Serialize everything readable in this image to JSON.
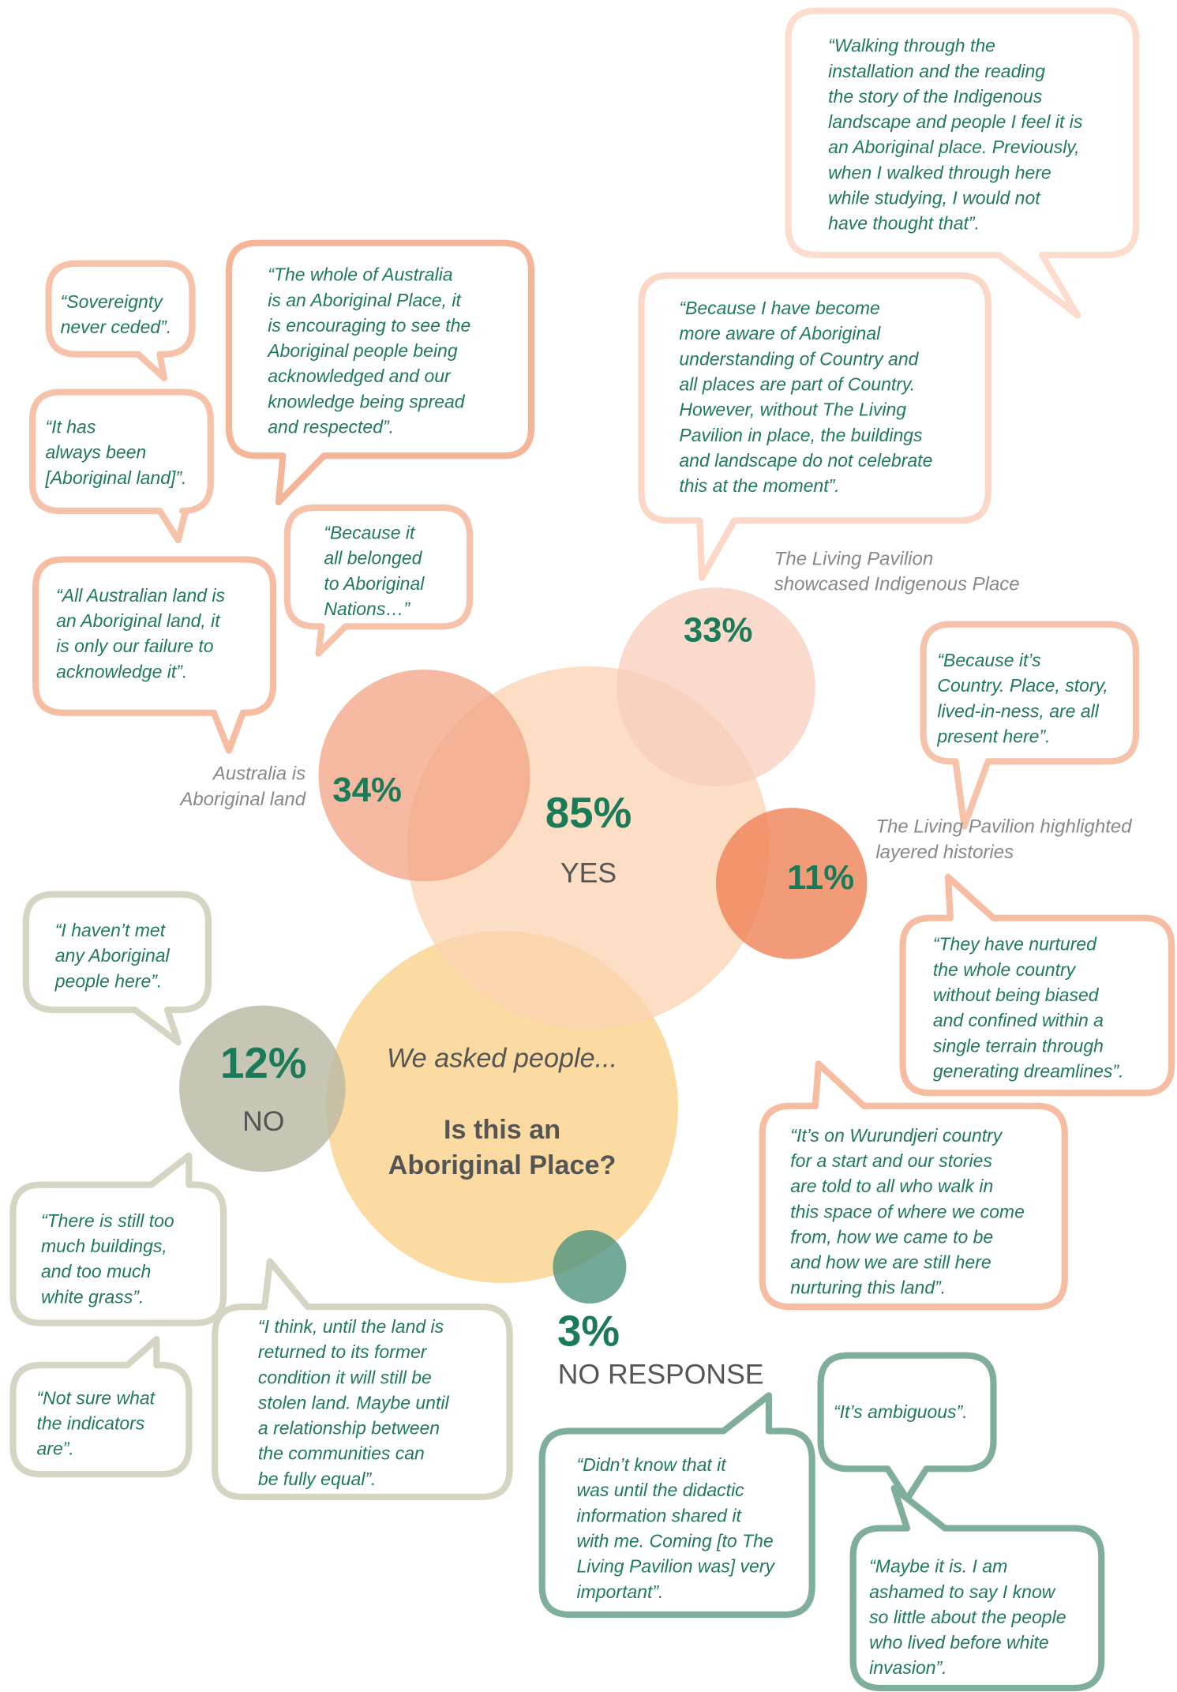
{
  "circles": [
    {
      "percent": "85%",
      "label": "YES"
    },
    {
      "percent": "34%",
      "caption": [
        "Australia is",
        "Aboriginal land"
      ]
    },
    {
      "percent": "33%",
      "caption": [
        "The Living Pavilion",
        "showcased Indigenous Place"
      ]
    },
    {
      "percent": "11%",
      "caption": [
        "The Living Pavilion highlighted",
        "layered histories"
      ]
    },
    {
      "percent": "12%",
      "label": "NO"
    },
    {
      "percent": "3%",
      "label": "NO RESPONSE"
    }
  ],
  "question": {
    "intro": "We asked people...",
    "lines": [
      "Is this an",
      "Aboriginal Place?"
    ]
  },
  "bubbles": [
    {
      "lines": [
        "“Walking through the",
        "installation and the reading",
        "the story of the Indigenous",
        "landscape and people I feel it is",
        "an Aboriginal place. Previously,",
        "when I walked through here",
        "while studying, I would not",
        "have thought that”."
      ]
    },
    {
      "lines": [
        "“Sovereignty",
        "never ceded”."
      ]
    },
    {
      "lines": [
        "“It has",
        "always been",
        "[Aboriginal land]”."
      ]
    },
    {
      "lines": [
        "“The whole of Australia",
        "is an Aboriginal Place, it",
        "is encouraging to see the",
        "Aboriginal people being",
        "acknowledged and our",
        "knowledge being spread",
        "and respected”."
      ]
    },
    {
      "lines": [
        "“Because it",
        "all belonged",
        "to Aboriginal",
        "Nations…”"
      ]
    },
    {
      "lines": [
        "“All Australian land is",
        "an Aboriginal land, it",
        "is only our failure to",
        "acknowledge it”."
      ]
    },
    {
      "lines": [
        "“Because I have become",
        "more aware of Aboriginal",
        "understanding of Country and",
        "all places are part of Country.",
        "However, without The Living",
        "Pavilion in place, the buildings",
        "and landscape do not celebrate",
        "this at the moment”."
      ]
    },
    {
      "lines": [
        "“Because it’s",
        "Country. Place, story,",
        "lived-in-ness, are all",
        "present here”."
      ]
    },
    {
      "lines": [
        "“They have nurtured",
        "the whole country",
        "without being biased",
        "and confined within a",
        "single terrain through",
        "generating dreamlines”."
      ]
    },
    {
      "lines": [
        "“It’s on Wurundjeri country",
        "for a start and our stories",
        "are told to all who walk in",
        "this space of where we come",
        "from, how we came to be",
        "and how we are still here",
        "nurturing this land”."
      ]
    },
    {
      "lines": [
        "“I haven’t met",
        "any Aboriginal",
        "people here”."
      ]
    },
    {
      "lines": [
        "“There is still too",
        "much buildings,",
        "and too much",
        "white grass”."
      ]
    },
    {
      "lines": [
        "“Not sure what",
        "the indicators",
        "are”."
      ]
    },
    {
      "lines": [
        "“I think, until the land is",
        "returned to its former",
        "condition it will still be",
        "stolen land. Maybe until",
        "a relationship between",
        "the communities can",
        "be fully equal”."
      ]
    },
    {
      "lines": [
        "“Didn’t know that it",
        "was until the didactic",
        "information shared it",
        "with me. Coming [to The",
        "Living Pavilion was] very",
        "important”."
      ]
    },
    {
      "lines": [
        "“It’s ambiguous”."
      ]
    },
    {
      "lines": [
        "“Maybe it is. I am",
        "ashamed to say I know",
        "so little about the people",
        "who lived before white",
        "invasion”."
      ]
    }
  ]
}
